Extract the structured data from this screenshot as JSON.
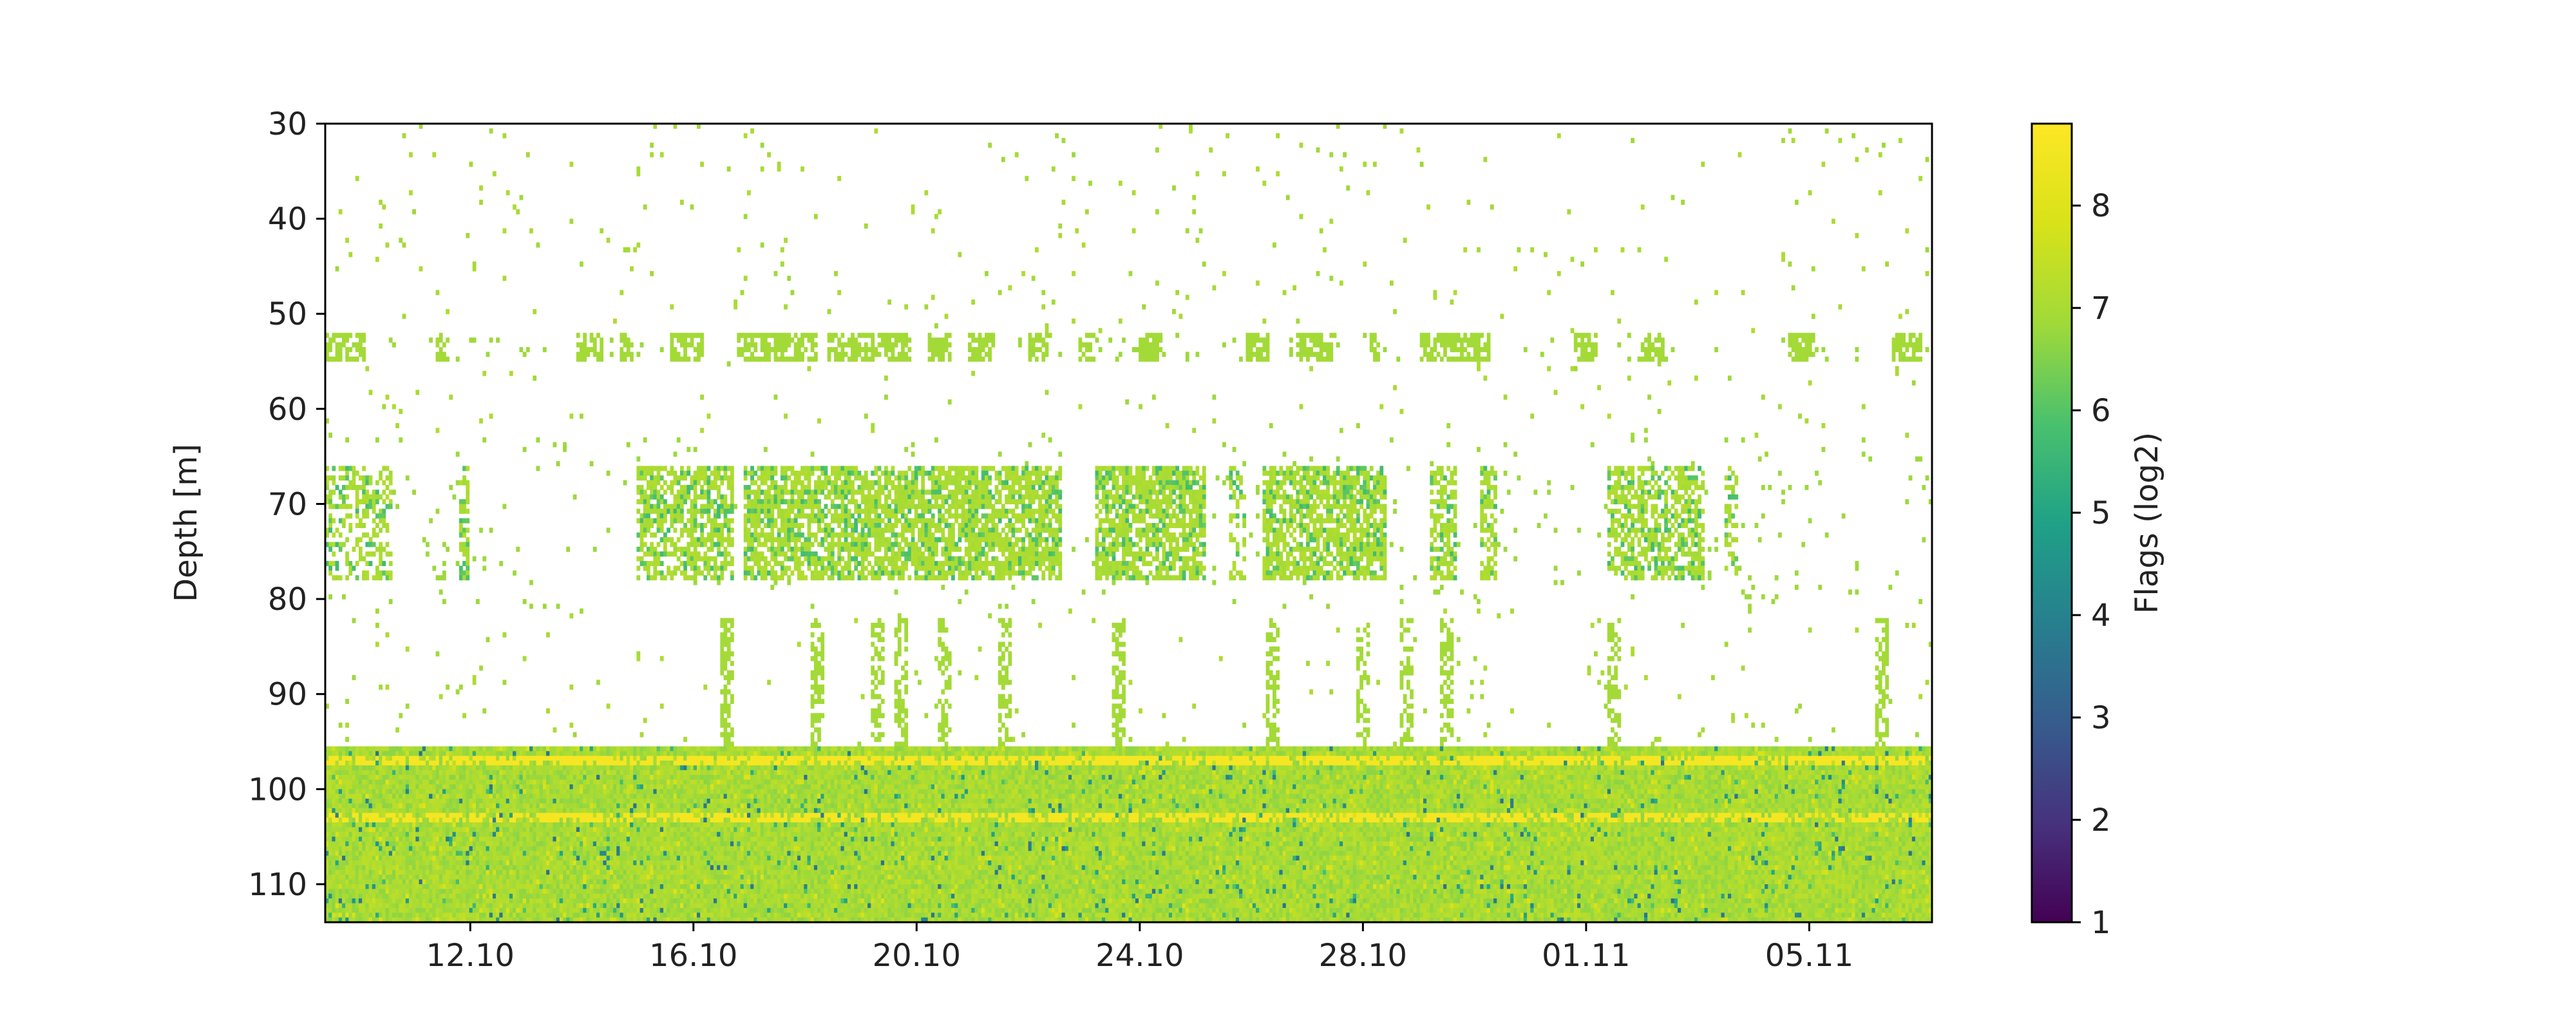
{
  "chart_data": {
    "type": "heatmap",
    "title": "",
    "xlabel": "",
    "ylabel": "Depth [m]",
    "x_tick_labels": [
      "12.10",
      "16.10",
      "20.10",
      "24.10",
      "28.10",
      "01.11",
      "05.11"
    ],
    "x_tick_positions_days": [
      2.6,
      6.6,
      10.6,
      14.6,
      18.6,
      22.6,
      26.6
    ],
    "x_range_days": [
      0,
      28.8
    ],
    "y_ticks": [
      30,
      40,
      50,
      60,
      70,
      80,
      90,
      100,
      110
    ],
    "y_range": [
      30,
      114
    ],
    "y_inverted": true,
    "colorbar": {
      "label": "Flags (log2)",
      "ticks": [
        1,
        2,
        3,
        4,
        5,
        6,
        7,
        8
      ],
      "range": [
        1,
        8.8
      ],
      "colormap": "viridis"
    },
    "features": [
      {
        "name": "surface band",
        "depth": [
          52,
          55
        ],
        "value": 7.0
      },
      {
        "name": "scattering layer",
        "depth": [
          63,
          81
        ],
        "value": 6.8
      },
      {
        "name": "bottom zone",
        "depth": [
          95.5,
          114
        ],
        "value": 7.0
      },
      {
        "name": "high flag line",
        "depth": [
          96.5,
          97.5
        ],
        "value": 8.5
      },
      {
        "name": "high flag line",
        "depth": [
          102.5,
          103.5
        ],
        "value": 8.5
      }
    ]
  }
}
